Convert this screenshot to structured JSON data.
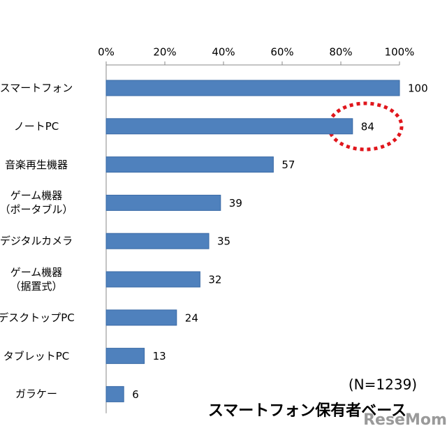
{
  "chart_data": {
    "type": "bar",
    "orientation": "horizontal",
    "categories": [
      "スマートフォン",
      "ノートPC",
      "音楽再生機器",
      "ゲーム機器\n（ポータブル）",
      "デジタルカメラ",
      "ゲーム機器\n（据置式）",
      "デスクトップPC",
      "タブレットPC",
      "ガラケー"
    ],
    "values": [
      100,
      84,
      57,
      39,
      35,
      32,
      24,
      13,
      6
    ],
    "color": "#4f81bd",
    "xlim": [
      0,
      100
    ],
    "xticks": [
      {
        "value": 0,
        "label": "0%"
      },
      {
        "value": 20,
        "label": "20%"
      },
      {
        "value": 40,
        "label": "40%"
      },
      {
        "value": 60,
        "label": "60%"
      },
      {
        "value": 80,
        "label": "80%"
      },
      {
        "value": 100,
        "label": "100%"
      }
    ],
    "grid": false,
    "annotations": [
      "(N=1239)",
      "スマートフォン保有者ベース"
    ],
    "watermark": "ReseMom"
  }
}
